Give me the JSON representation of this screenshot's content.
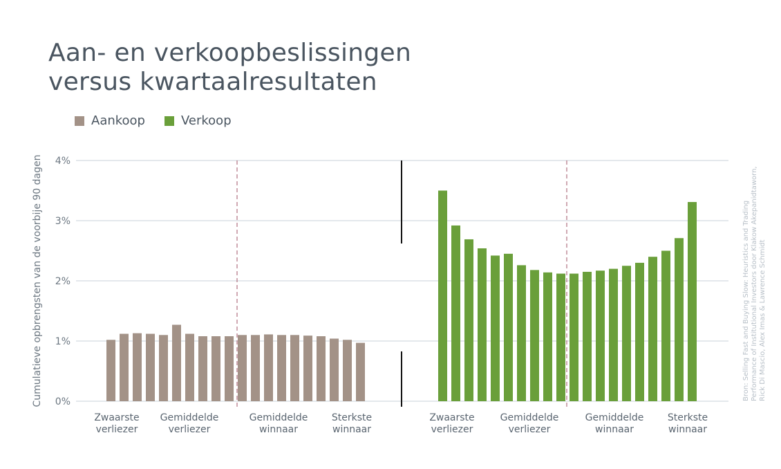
{
  "title_line1": "Aan- en verkoopbeslissingen",
  "title_line2": "versus kwartaalresultaten",
  "legend": [
    {
      "label": "Aankoop",
      "color": "#a39287"
    },
    {
      "label": "Verkoop",
      "color": "#6a9f3a"
    }
  ],
  "ylabel": "Cumulatieve opbrengsten van de voorbije 90 dagen",
  "source_lines": [
    "Bron: Selling Fast and Buying Slow: Heuristics and Trading",
    "Performance of Institutional Investors door Klakow Akepanidtaworn,",
    "Rick Di Mascio, Alex Imas & Lawrence Schmidt"
  ],
  "chart_data": {
    "type": "bar",
    "ylim": [
      0,
      4
    ],
    "yticks": [
      {
        "value": 0,
        "label": "0%"
      },
      {
        "value": 1,
        "label": "1%"
      },
      {
        "value": 2,
        "label": "2%"
      },
      {
        "value": 3,
        "label": "3%"
      },
      {
        "value": 4,
        "label": "4%"
      }
    ],
    "grid": true,
    "category_labels": [
      [
        "Zwaarste",
        "verliezer"
      ],
      [
        "Gemiddelde",
        "verliezer"
      ],
      [
        "Gemiddelde",
        "winnaar"
      ],
      [
        "Sterkste",
        "winnaar"
      ]
    ],
    "series": [
      {
        "name": "Aankoop",
        "color": "#a39287",
        "values": [
          1.02,
          1.12,
          1.13,
          1.12,
          1.1,
          1.27,
          1.12,
          1.08,
          1.08,
          1.08,
          1.1,
          1.1,
          1.11,
          1.1,
          1.1,
          1.09,
          1.08,
          1.04,
          1.02,
          0.97
        ]
      },
      {
        "name": "Verkoop",
        "color": "#6a9f3a",
        "values": [
          3.5,
          2.92,
          2.69,
          2.54,
          2.42,
          2.45,
          2.26,
          2.18,
          2.14,
          2.12,
          2.12,
          2.15,
          2.17,
          2.2,
          2.25,
          2.3,
          2.4,
          2.5,
          2.71,
          3.31
        ]
      }
    ]
  }
}
